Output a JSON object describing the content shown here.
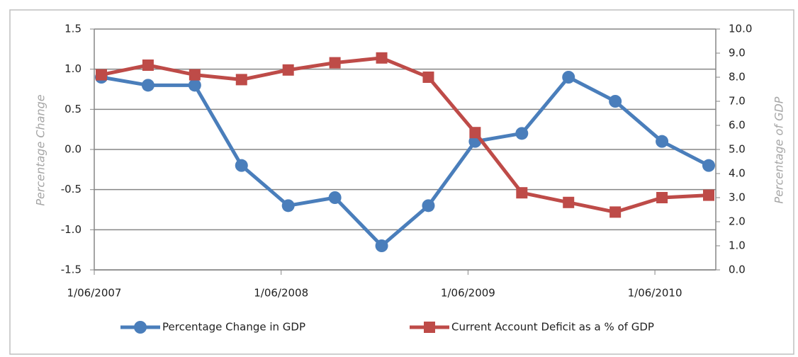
{
  "chart_data": {
    "type": "line",
    "categories": [
      "1/06/2007",
      null,
      null,
      null,
      "1/06/2008",
      null,
      null,
      null,
      "1/06/2009",
      null,
      null,
      null,
      "1/06/2010",
      null
    ],
    "y_label": "Percentage Change",
    "y2_label": "Percentage of GDP",
    "series": [
      {
        "name": "Percentage Change in GDP",
        "color": "#4a7ebb",
        "marker": "circle",
        "values": [
          0.9,
          0.8,
          0.8,
          -0.2,
          -0.7,
          -0.6,
          -1.2,
          -0.7,
          0.1,
          0.2,
          0.9,
          0.6,
          0.1,
          -0.2
        ]
      },
      {
        "name": "Current Account Deficit as a % of GDP",
        "color": "#be4b48",
        "marker": "square",
        "axis": "y2",
        "values": [
          8.1,
          8.5,
          8.1,
          7.9,
          8.3,
          8.6,
          8.8,
          8.0,
          5.7,
          3.2,
          2.8,
          2.4,
          3.0,
          3.1
        ]
      }
    ],
    "ylim": [
      -1.5,
      1.5
    ],
    "yticks": [
      1.5,
      {
        "value": 1,
        "label": "1.0"
      },
      0.5,
      {
        "value": 0,
        "label": "0.0"
      },
      -0.5,
      {
        "value": -1,
        "label": "-1.0"
      },
      -1.5
    ],
    "y2lim": [
      0,
      10
    ],
    "y2ticks": [
      {
        "value": 10,
        "label": "10.0"
      },
      {
        "value": 9,
        "label": "9.0"
      },
      {
        "value": 8,
        "label": "8.0"
      },
      {
        "value": 7,
        "label": "7.0"
      },
      {
        "value": 6,
        "label": "6.0"
      },
      {
        "value": 5,
        "label": "5.0"
      },
      {
        "value": 4,
        "label": "4.0"
      },
      {
        "value": 3,
        "label": "3.0"
      },
      {
        "value": 2,
        "label": "2.0"
      },
      {
        "value": 1,
        "label": "1.0"
      },
      {
        "value": 0,
        "label": "0.0"
      }
    ],
    "grid": true,
    "legend": "bottom"
  }
}
